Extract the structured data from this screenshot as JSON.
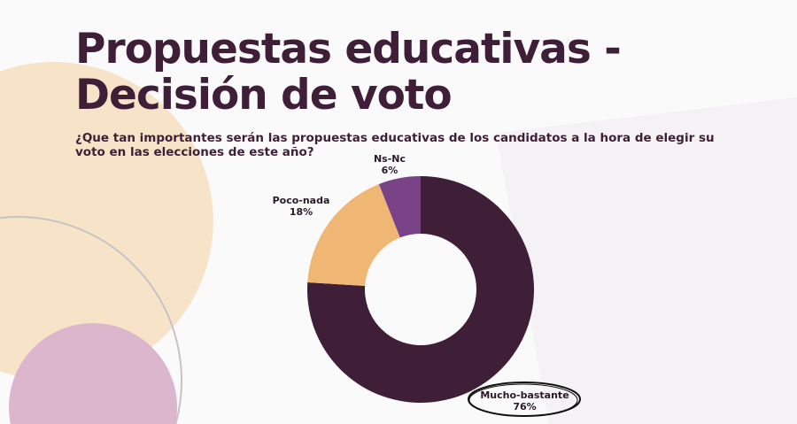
{
  "title_line1": "Propuestas educativas -",
  "title_line2": "Decisión de voto",
  "subtitle": "¿Que tan importantes serán las propuestas educativas de los candidatos a la hora de elegir su voto en las elecciones de este año?",
  "chart_data": {
    "type": "pie",
    "donut": true,
    "categories": [
      "Mucho-bastante",
      "Poco-nada",
      "Ns-Nc"
    ],
    "values": [
      76,
      18,
      6
    ],
    "data_labels": [
      "76%",
      "18%",
      "6%"
    ],
    "colors": [
      "#3f1f38",
      "#f0b673",
      "#7a4388"
    ],
    "highlighted": "Mucho-bastante"
  }
}
